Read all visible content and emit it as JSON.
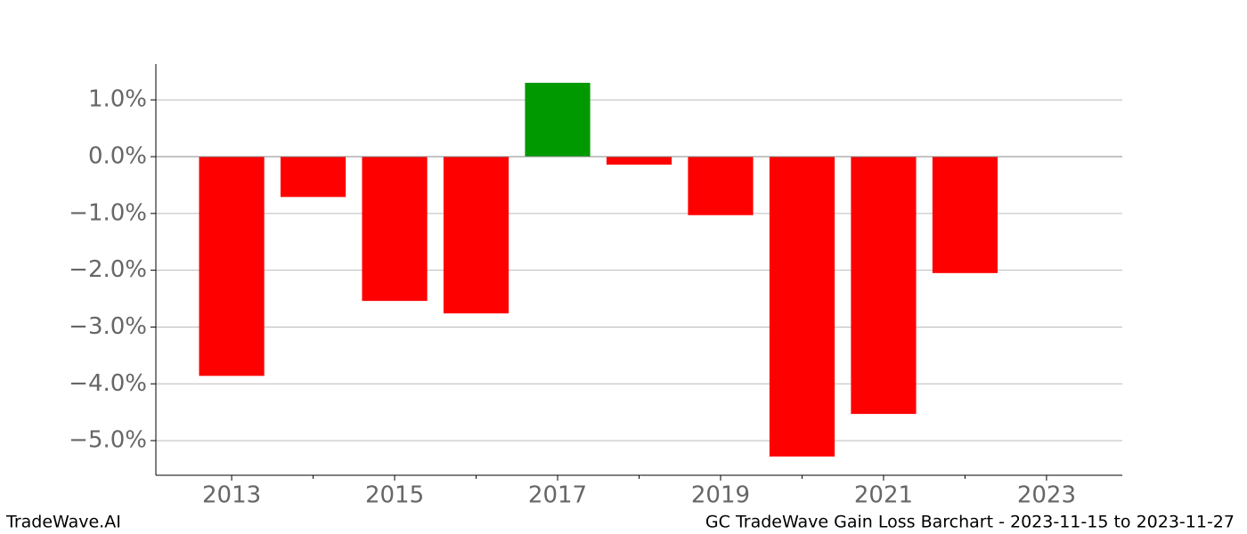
{
  "chart_data": {
    "type": "bar",
    "title": "GC TradeWave Gain Loss Barchart - 2023-11-15 to 2023-11-27",
    "source": "TradeWave.AI",
    "x": [
      2013,
      2014,
      2015,
      2016,
      2017,
      2018,
      2019,
      2020,
      2021,
      2022
    ],
    "values": [
      -3.86,
      -0.71,
      -2.54,
      -2.76,
      1.3,
      -0.14,
      -1.03,
      -5.28,
      -4.53,
      -2.05
    ],
    "positive_color": "#009900",
    "negative_color": "#ff0000",
    "xlim": [
      2012.07,
      2023.93
    ],
    "xticks": [
      2013,
      2015,
      2017,
      2019,
      2021,
      2023
    ],
    "ylim": [
      -5.61,
      1.63
    ],
    "yticks": [
      {
        "value": 1,
        "label": "1.0%"
      },
      {
        "value": 0,
        "label": "0.0%"
      },
      {
        "value": -1,
        "label": "−1.0%"
      },
      {
        "value": -2,
        "label": "−2.0%"
      },
      {
        "value": -3,
        "label": "−3.0%"
      },
      {
        "value": -4,
        "label": "−4.0%"
      },
      {
        "value": -5,
        "label": "−5.0%"
      }
    ],
    "grid": true
  }
}
